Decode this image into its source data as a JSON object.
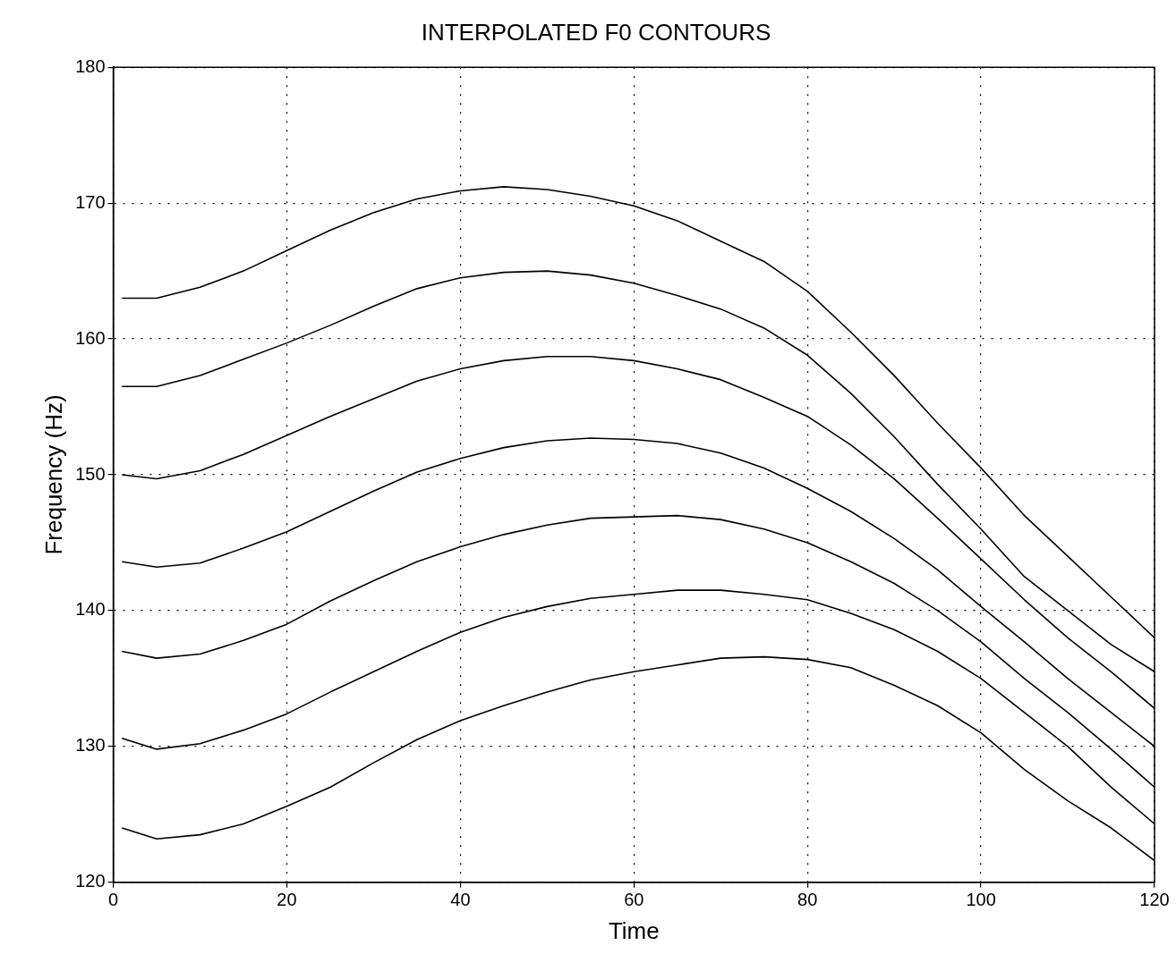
{
  "chart_data": {
    "type": "line",
    "title": "INTERPOLATED F0 CONTOURS",
    "xlabel": "Time",
    "ylabel": "Frequency (Hz)",
    "x": [
      1,
      5,
      10,
      15,
      20,
      25,
      30,
      35,
      40,
      45,
      50,
      55,
      60,
      65,
      70,
      75,
      80,
      85,
      90,
      95,
      100,
      105,
      110,
      115,
      120
    ],
    "series": [
      {
        "color": "#000000",
        "values": [
          163,
          163,
          163.8,
          165,
          166.5,
          168,
          169.3,
          170.3,
          170.9,
          171.2,
          171,
          170.5,
          169.8,
          168.7,
          167.2,
          165.7,
          163.5,
          160.5,
          157.3,
          153.8,
          150.5,
          147,
          144,
          141,
          138
        ]
      },
      {
        "color": "#000000",
        "values": [
          156.5,
          156.5,
          157.3,
          158.5,
          159.7,
          161,
          162.4,
          163.7,
          164.5,
          164.9,
          165,
          164.7,
          164.1,
          163.2,
          162.2,
          160.8,
          158.8,
          156,
          152.8,
          149.3,
          146,
          142.5,
          140,
          137.5,
          135.5
        ]
      },
      {
        "color": "#000000",
        "values": [
          150,
          149.7,
          150.3,
          151.5,
          152.9,
          154.3,
          155.6,
          156.9,
          157.8,
          158.4,
          158.7,
          158.7,
          158.4,
          157.8,
          157,
          155.7,
          154.3,
          152.2,
          149.7,
          146.8,
          143.8,
          140.8,
          138,
          135.5,
          132.8
        ]
      },
      {
        "color": "#000000",
        "values": [
          143.6,
          143.2,
          143.5,
          144.6,
          145.8,
          147.3,
          148.8,
          150.2,
          151.2,
          152,
          152.5,
          152.7,
          152.6,
          152.3,
          151.6,
          150.5,
          149,
          147.3,
          145.3,
          143,
          140.3,
          137.7,
          135,
          132.5,
          130
        ]
      },
      {
        "color": "#000000",
        "values": [
          137,
          136.5,
          136.8,
          137.8,
          139,
          140.7,
          142.2,
          143.6,
          144.7,
          145.6,
          146.3,
          146.8,
          146.9,
          147,
          146.7,
          146,
          145,
          143.6,
          142,
          140,
          137.7,
          135,
          132.5,
          129.8,
          127
        ]
      },
      {
        "color": "#000000",
        "values": [
          130.6,
          129.8,
          130.2,
          131.2,
          132.4,
          134,
          135.5,
          137,
          138.4,
          139.5,
          140.3,
          140.9,
          141.2,
          141.5,
          141.5,
          141.2,
          140.8,
          139.8,
          138.6,
          137,
          135,
          132.5,
          130,
          127,
          124.3
        ]
      },
      {
        "color": "#000000",
        "values": [
          124,
          123.2,
          123.5,
          124.3,
          125.6,
          127,
          128.8,
          130.5,
          131.9,
          133,
          134,
          134.9,
          135.5,
          136,
          136.5,
          136.6,
          136.4,
          135.8,
          134.5,
          133,
          131,
          128.3,
          126,
          124,
          121.6
        ]
      }
    ],
    "xlim": [
      0,
      120
    ],
    "xticks": [
      0,
      20,
      40,
      60,
      80,
      100,
      120
    ],
    "ylim": [
      120,
      180
    ],
    "yticks": [
      120,
      130,
      140,
      150,
      160,
      170,
      180
    ],
    "grid": true,
    "legend": false,
    "marker": "none",
    "line_style": "solid"
  }
}
